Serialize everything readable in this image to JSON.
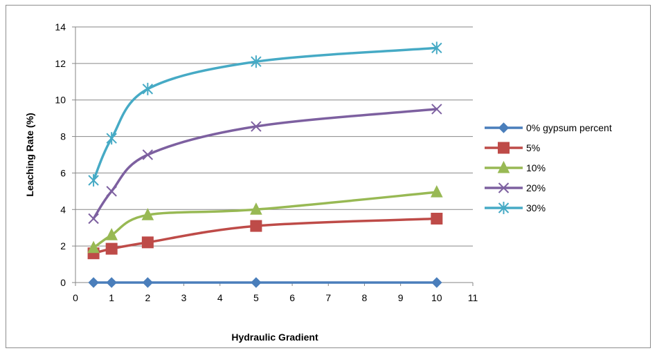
{
  "chart_data": {
    "type": "scatter",
    "xlabel": "Hydraulic Gradient",
    "ylabel": "Leaching Rate (%)",
    "xlim": [
      0,
      11
    ],
    "ylim": [
      0,
      14
    ],
    "x_ticks": [
      0,
      1,
      2,
      3,
      4,
      5,
      6,
      7,
      8,
      9,
      10,
      11
    ],
    "y_ticks": [
      0,
      2,
      4,
      6,
      8,
      10,
      12,
      14
    ],
    "grid": "horizontal",
    "legend_position": "right",
    "x": [
      0.5,
      1,
      2,
      5,
      10
    ],
    "series": [
      {
        "name": "0% gypsum percent",
        "values": [
          0,
          0,
          0,
          0,
          0
        ],
        "color": "#4a7ebb",
        "marker": "diamond"
      },
      {
        "name": "5%",
        "values": [
          1.6,
          1.85,
          2.2,
          3.1,
          3.5
        ],
        "color": "#be4b48",
        "marker": "square"
      },
      {
        "name": "10%",
        "values": [
          1.9,
          2.6,
          3.7,
          4.0,
          4.95
        ],
        "color": "#98b954",
        "marker": "triangle"
      },
      {
        "name": "20%",
        "values": [
          3.5,
          5.0,
          7.0,
          8.55,
          9.5
        ],
        "color": "#7d60a0",
        "marker": "x"
      },
      {
        "name": "30%",
        "values": [
          5.6,
          7.9,
          10.6,
          12.1,
          12.85
        ],
        "color": "#46aac5",
        "marker": "star"
      }
    ]
  }
}
